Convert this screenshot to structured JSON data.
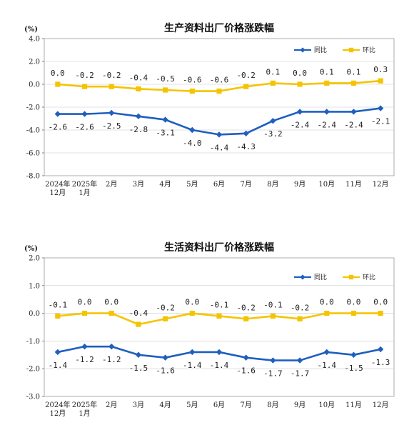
{
  "chart_data": [
    {
      "type": "line",
      "title": "生产资料出厂价格涨跌幅",
      "unit_label": "(%)",
      "categories": [
        [
          "2024年",
          "12月"
        ],
        [
          "2025年",
          "1月"
        ],
        [
          "2月"
        ],
        [
          "3月"
        ],
        [
          "4月"
        ],
        [
          "5月"
        ],
        [
          "6月"
        ],
        [
          "7月"
        ],
        [
          "8月"
        ],
        [
          "9月"
        ],
        [
          "10月"
        ],
        [
          "11月"
        ],
        [
          "12月"
        ]
      ],
      "ylim": [
        -8.0,
        4.0
      ],
      "yticks": [
        "4.0",
        "2.0",
        "0.0",
        "-2.0",
        "-4.0",
        "-6.0",
        "-8.0"
      ],
      "legend_position": "top-right",
      "series": [
        {
          "name": "同比",
          "color": "#1f5fbf",
          "marker": "diamond",
          "values": [
            -2.6,
            -2.6,
            -2.5,
            -2.8,
            -3.1,
            -4.0,
            -4.4,
            -4.3,
            -3.2,
            -2.4,
            -2.4,
            -2.4,
            -2.1
          ],
          "labels": [
            "-2.6",
            "-2.6",
            "-2.5",
            "-2.8",
            "-3.1",
            "-4.0",
            "-4.4",
            "-4.3",
            "-3.2",
            "-2.4",
            "-2.4",
            "-2.4",
            "-2.1"
          ]
        },
        {
          "name": "环比",
          "color": "#f5c400",
          "marker": "square",
          "values": [
            0.0,
            -0.2,
            -0.2,
            -0.4,
            -0.5,
            -0.6,
            -0.6,
            -0.2,
            0.1,
            0.0,
            0.1,
            0.1,
            0.3
          ],
          "labels": [
            "0.0",
            "-0.2",
            "-0.2",
            "-0.4",
            "-0.5",
            "-0.6",
            "-0.6",
            "-0.2",
            "0.1",
            "0.0",
            "0.1",
            "0.1",
            "0.3"
          ]
        }
      ]
    },
    {
      "type": "line",
      "title": "生活资料出厂价格涨跌幅",
      "unit_label": "(%)",
      "categories": [
        [
          "2024年",
          "12月"
        ],
        [
          "2025年",
          "1月"
        ],
        [
          "2月"
        ],
        [
          "3月"
        ],
        [
          "4月"
        ],
        [
          "5月"
        ],
        [
          "6月"
        ],
        [
          "7月"
        ],
        [
          "8月"
        ],
        [
          "9月"
        ],
        [
          "10月"
        ],
        [
          "11月"
        ],
        [
          "12月"
        ]
      ],
      "ylim": [
        -3.0,
        2.0
      ],
      "yticks": [
        "2.0",
        "1.0",
        "0.0",
        "-1.0",
        "-2.0",
        "-3.0"
      ],
      "legend_position": "top-right",
      "series": [
        {
          "name": "同比",
          "color": "#1f5fbf",
          "marker": "diamond",
          "values": [
            -1.4,
            -1.2,
            -1.2,
            -1.5,
            -1.6,
            -1.4,
            -1.4,
            -1.6,
            -1.7,
            -1.7,
            -1.4,
            -1.5,
            -1.3
          ],
          "labels": [
            "-1.4",
            "-1.2",
            "-1.2",
            "-1.5",
            "-1.6",
            "-1.4",
            "-1.4",
            "-1.6",
            "-1.7",
            "-1.7",
            "-1.4",
            "-1.5",
            "-1.3"
          ]
        },
        {
          "name": "环比",
          "color": "#f5c400",
          "marker": "square",
          "values": [
            -0.1,
            0.0,
            0.0,
            -0.4,
            -0.2,
            0.0,
            -0.1,
            -0.2,
            -0.1,
            -0.2,
            0.0,
            0.0,
            0.0
          ],
          "labels": [
            "-0.1",
            "0.0",
            "0.0",
            "-0.4",
            "-0.2",
            "0.0",
            "-0.1",
            "-0.2",
            "-0.1",
            "-0.2",
            "0.0",
            "0.0",
            "0.0"
          ]
        }
      ]
    }
  ]
}
